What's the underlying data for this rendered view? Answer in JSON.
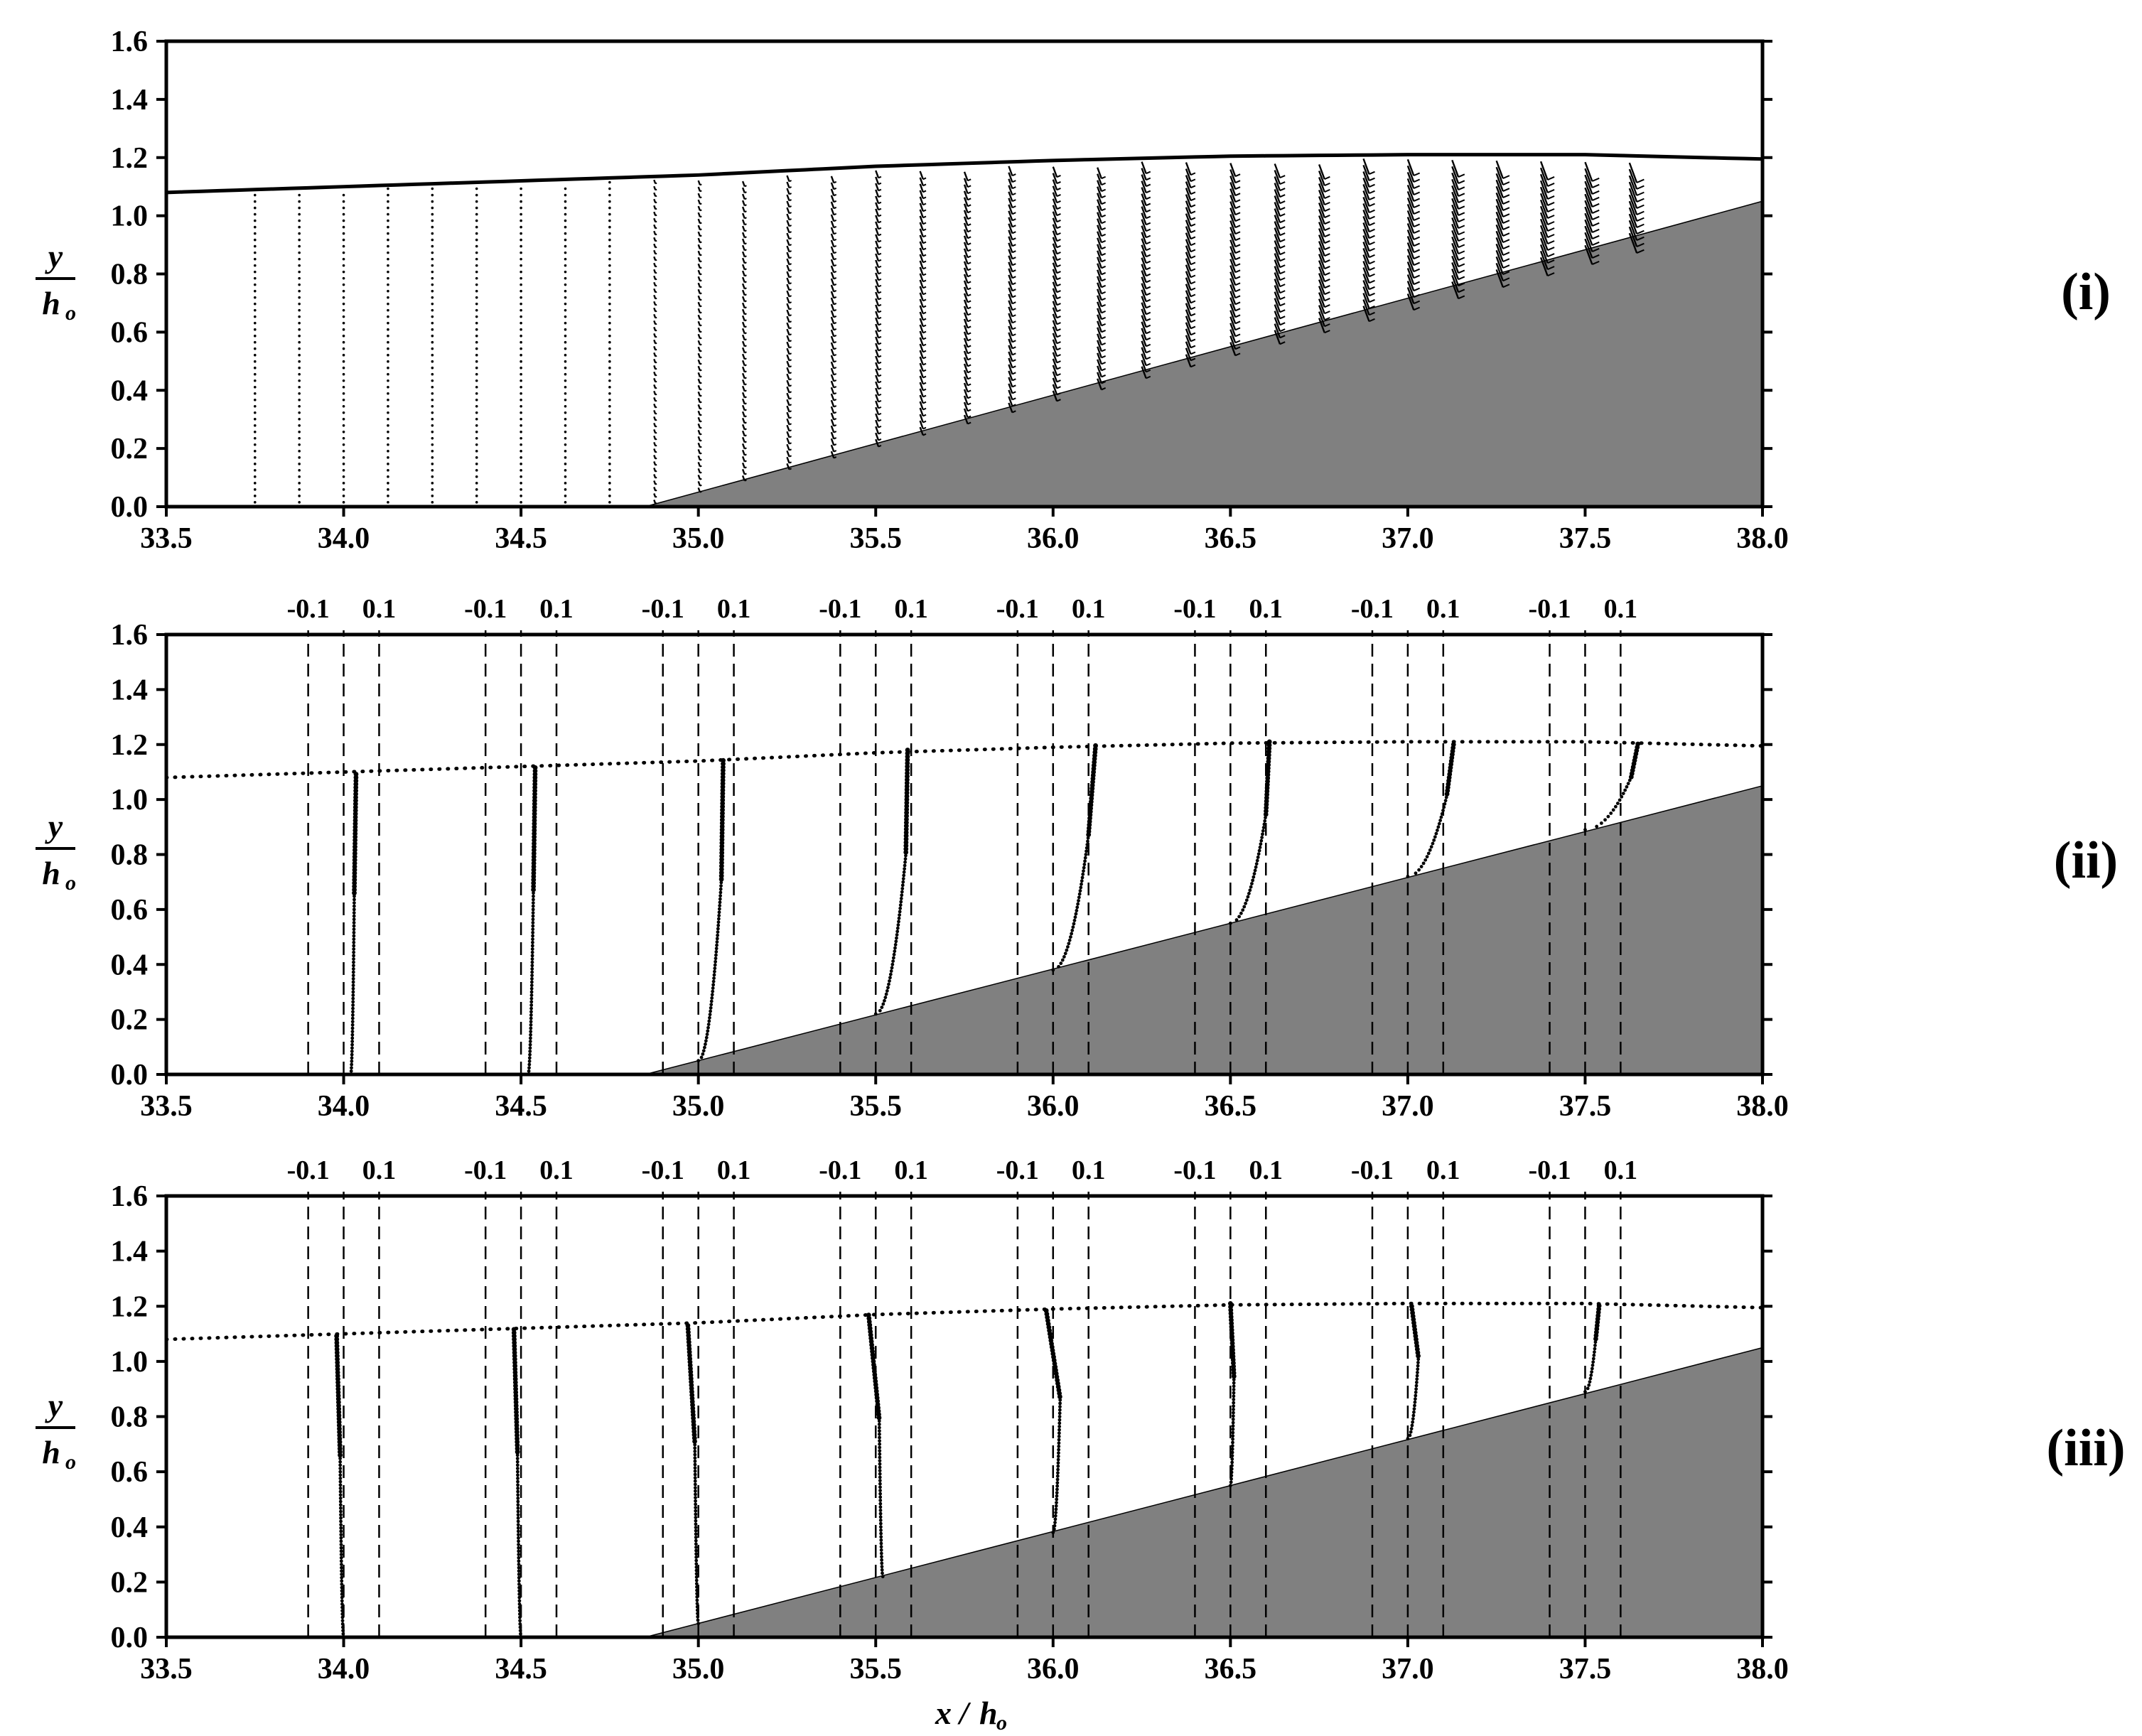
{
  "colors": {
    "bed_fill": "#808080",
    "ink": "#000000",
    "background": "#ffffff"
  },
  "axis_titles": {
    "y_num": "y",
    "y_den": "h",
    "y_den_sub": "o",
    "x_num": "x",
    "x_slash": "/",
    "x_den": "h",
    "x_den_sub": "o"
  },
  "chart_data": [
    {
      "panel": "(i)",
      "type": "scatter",
      "description_kind": "velocity vector field",
      "xlim": [
        33.5,
        38.0
      ],
      "ylim": [
        0.0,
        1.6
      ],
      "x_ticks": [
        "33.5",
        "34.0",
        "34.5",
        "35.0",
        "35.5",
        "36.0",
        "36.5",
        "37.0",
        "37.5",
        "38.0"
      ],
      "y_ticks": [
        "0.0",
        "0.2",
        "0.4",
        "0.6",
        "0.8",
        "1.0",
        "1.2",
        "1.4",
        "1.6"
      ],
      "free_surface": {
        "x": [
          33.5,
          34.0,
          34.5,
          35.0,
          35.5,
          36.0,
          36.5,
          37.0,
          37.5,
          38.0
        ],
        "y": [
          1.08,
          1.1,
          1.12,
          1.14,
          1.17,
          1.19,
          1.205,
          1.21,
          1.21,
          1.195
        ]
      },
      "bed": {
        "x": [
          34.85,
          38.0
        ],
        "y": [
          0.0,
          1.05
        ]
      },
      "vector_stations_x": [
        33.75,
        33.875,
        34.0,
        34.125,
        34.25,
        34.375,
        34.5,
        34.625,
        34.75,
        34.875,
        35.0,
        35.125,
        35.25,
        35.375,
        35.5,
        35.625,
        35.75,
        35.875,
        36.0,
        36.125,
        36.25,
        36.375,
        36.5,
        36.625,
        36.75,
        36.875,
        37.0,
        37.125,
        37.25,
        37.375,
        37.5,
        37.625
      ]
    },
    {
      "panel": "(ii)",
      "type": "line",
      "description_kind": "horizontal velocity profiles",
      "xlim": [
        33.5,
        38.0
      ],
      "ylim": [
        0.0,
        1.6
      ],
      "x_ticks": [
        "33.5",
        "34.0",
        "34.5",
        "35.0",
        "35.5",
        "36.0",
        "36.5",
        "37.0",
        "37.5",
        "38.0"
      ],
      "y_ticks": [
        "0.0",
        "0.2",
        "0.4",
        "0.6",
        "0.8",
        "1.0",
        "1.2",
        "1.4",
        "1.6"
      ],
      "ref_labels": [
        "-0.1",
        "0.1"
      ],
      "stations": [
        34.0,
        34.5,
        35.0,
        35.5,
        36.0,
        36.5,
        37.0,
        37.5
      ],
      "profiles": [
        {
          "station": 34.0,
          "u_top": 0.035,
          "u_knee": 0.03,
          "u_bed": 0.02,
          "y_bed": 0.0,
          "y_top": 1.1
        },
        {
          "station": 34.5,
          "u_top": 0.04,
          "u_knee": 0.035,
          "u_bed": 0.02,
          "y_bed": 0.0,
          "y_top": 1.12
        },
        {
          "station": 35.0,
          "u_top": 0.07,
          "u_knee": 0.065,
          "u_bed": 0.0,
          "y_bed": 0.05,
          "y_top": 1.15
        },
        {
          "station": 35.5,
          "u_top": 0.09,
          "u_knee": 0.085,
          "u_bed": 0.0,
          "y_bed": 0.22,
          "y_top": 1.19
        },
        {
          "station": 36.0,
          "u_top": 0.12,
          "u_knee": 0.1,
          "u_bed": 0.0,
          "y_bed": 0.38,
          "y_top": 1.2
        },
        {
          "station": 36.5,
          "u_top": 0.11,
          "u_knee": 0.1,
          "u_bed": 0.0,
          "y_bed": 0.55,
          "y_top": 1.21
        },
        {
          "station": 37.0,
          "u_top": 0.13,
          "u_knee": 0.11,
          "u_bed": 0.0,
          "y_bed": 0.72,
          "y_top": 1.21
        },
        {
          "station": 37.5,
          "u_top": 0.15,
          "u_knee": 0.13,
          "u_bed": 0.0,
          "y_bed": 0.89,
          "y_top": 1.21
        }
      ],
      "free_surface": {
        "x": [
          33.5,
          34.0,
          34.5,
          35.0,
          35.5,
          36.0,
          36.5,
          37.0,
          37.5,
          38.0
        ],
        "y": [
          1.08,
          1.1,
          1.12,
          1.14,
          1.17,
          1.19,
          1.205,
          1.21,
          1.21,
          1.195
        ]
      },
      "bed": {
        "x": [
          34.85,
          38.0
        ],
        "y": [
          0.0,
          1.05
        ]
      }
    },
    {
      "panel": "(iii)",
      "type": "line",
      "description_kind": "vertical velocity profiles",
      "xlim": [
        33.5,
        38.0
      ],
      "ylim": [
        0.0,
        1.6
      ],
      "x_ticks": [
        "33.5",
        "34.0",
        "34.5",
        "35.0",
        "35.5",
        "36.0",
        "36.5",
        "37.0",
        "37.5",
        "38.0"
      ],
      "y_ticks": [
        "0.0",
        "0.2",
        "0.4",
        "0.6",
        "0.8",
        "1.0",
        "1.2",
        "1.4",
        "1.6"
      ],
      "ref_labels": [
        "-0.1",
        "0.1"
      ],
      "stations": [
        34.0,
        34.5,
        35.0,
        35.5,
        36.0,
        36.5,
        37.0,
        37.5
      ],
      "profiles": [
        {
          "station": 34.0,
          "u_top": -0.02,
          "u_knee": -0.01,
          "u_bed": 0.0,
          "y_bed": 0.0,
          "y_top": 1.1
        },
        {
          "station": 34.5,
          "u_top": -0.02,
          "u_knee": -0.01,
          "u_bed": 0.0,
          "y_bed": 0.0,
          "y_top": 1.12
        },
        {
          "station": 35.0,
          "u_top": -0.03,
          "u_knee": -0.01,
          "u_bed": 0.0,
          "y_bed": 0.05,
          "y_top": 1.14
        },
        {
          "station": 35.5,
          "u_top": -0.02,
          "u_knee": 0.01,
          "u_bed": 0.02,
          "y_bed": 0.22,
          "y_top": 1.17
        },
        {
          "station": 36.0,
          "u_top": -0.02,
          "u_knee": 0.02,
          "u_bed": 0.0,
          "y_bed": 0.38,
          "y_top": 1.19
        },
        {
          "station": 36.5,
          "u_top": 0.0,
          "u_knee": 0.01,
          "u_bed": 0.0,
          "y_bed": 0.55,
          "y_top": 1.21
        },
        {
          "station": 37.0,
          "u_top": 0.01,
          "u_knee": 0.03,
          "u_bed": 0.0,
          "y_bed": 0.72,
          "y_top": 1.21
        },
        {
          "station": 37.5,
          "u_top": 0.04,
          "u_knee": 0.03,
          "u_bed": 0.0,
          "y_bed": 0.89,
          "y_top": 1.21
        }
      ],
      "free_surface": {
        "x": [
          33.5,
          34.0,
          34.5,
          35.0,
          35.5,
          36.0,
          36.5,
          37.0,
          37.5,
          38.0
        ],
        "y": [
          1.08,
          1.1,
          1.12,
          1.14,
          1.17,
          1.19,
          1.205,
          1.21,
          1.21,
          1.195
        ]
      },
      "bed": {
        "x": [
          34.85,
          38.0
        ],
        "y": [
          0.0,
          1.05
        ]
      }
    }
  ]
}
